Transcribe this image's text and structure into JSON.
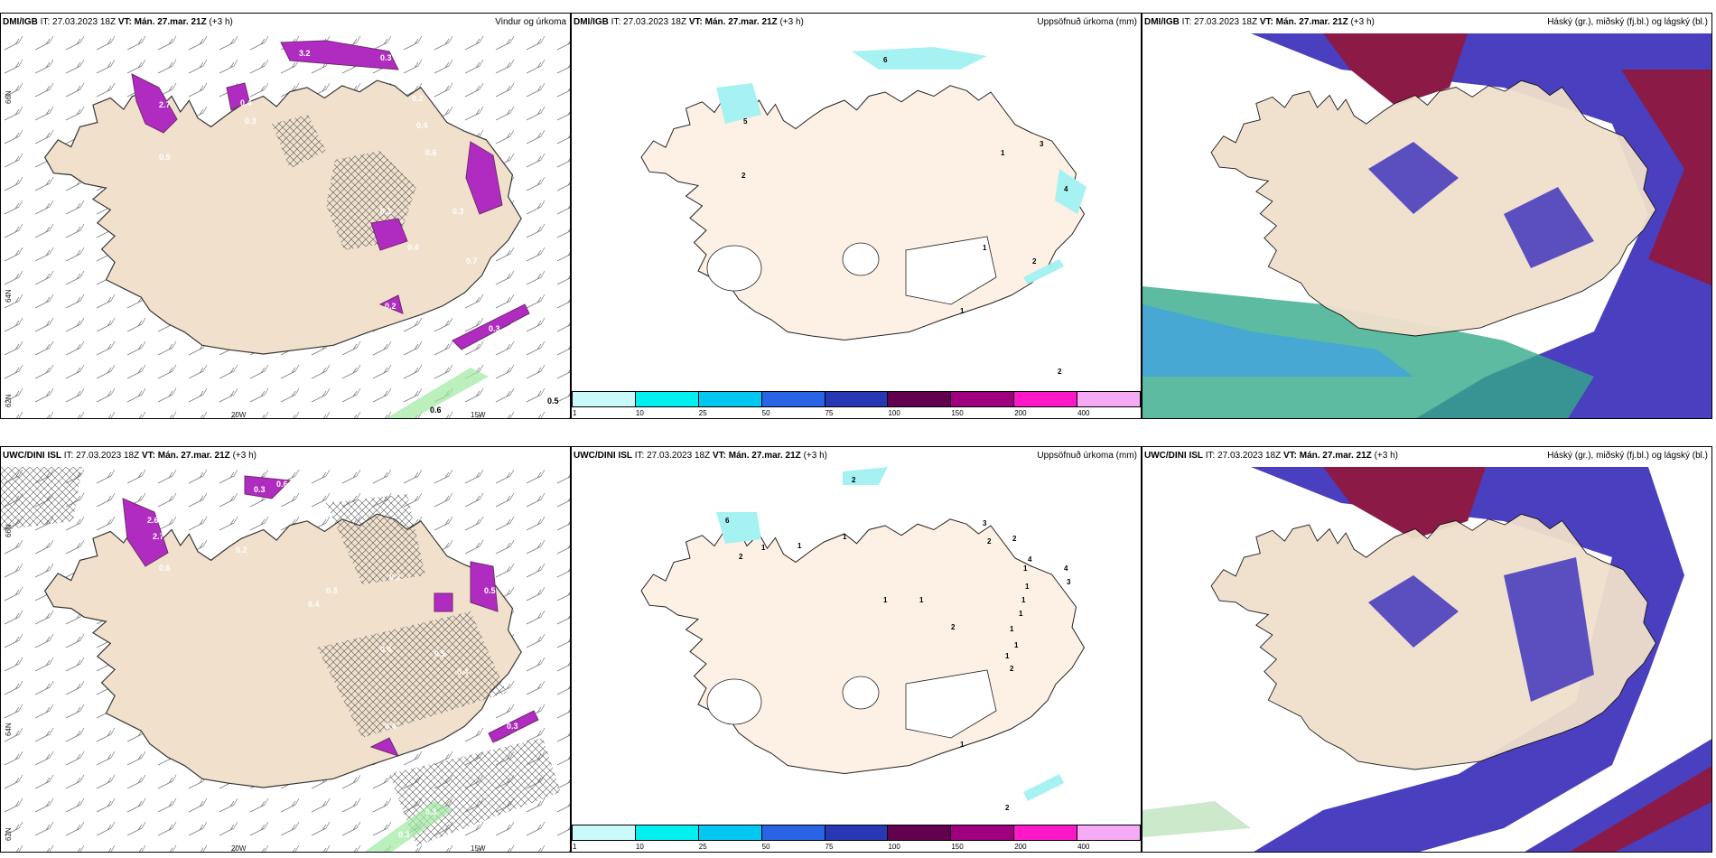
{
  "colors": {
    "land": "#f0e0cc",
    "land_dark": "#e9d8c4",
    "land_light": "#fdf0e4",
    "precip_purple": "#b02cc0",
    "precip_dark": "#6e2a70",
    "accum_cyan": "#a6f1f1",
    "cloud_high": "#8c1a46",
    "cloud_mid": "#4a3fbf",
    "cloud_low": "#3d9fe8",
    "cloud_green": "#33aa88"
  },
  "axis_labels": {
    "lat_66n": "66N",
    "lat_64n": "64N",
    "lat_62n": "62N",
    "lon_20w": "20W",
    "lon_15w": "15W"
  },
  "colorbar": {
    "colors": [
      "#c8fafa",
      "#00f0f0",
      "#00c8f0",
      "#2a64e6",
      "#2838b4",
      "#640050",
      "#a00080",
      "#ff18c8",
      "#f5aaf5"
    ],
    "ticks": [
      "1",
      "10",
      "25",
      "50",
      "75",
      "100",
      "150",
      "200",
      "400"
    ]
  },
  "rows": [
    {
      "panels": [
        {
          "source": "DMI/IGB",
          "it_text": "IT: 27.03.2023 18Z",
          "vt_label": "VT:",
          "vt_value": "Mán. 27.mar. 21Z",
          "lead": "(+3 h)",
          "title": "Vindur og úrkoma",
          "labels": [
            "3.2",
            "0.3",
            "2.7",
            "0.4",
            "0.2",
            "0.3",
            "0.5",
            "0.4",
            "0.6",
            "0.3",
            "0.4",
            "0.1",
            "0.7",
            "0.2",
            "0.1",
            "0.3",
            "0.6",
            "0.5"
          ]
        },
        {
          "source": "DMI/IGB",
          "it_text": "IT: 27.03.2023 18Z",
          "vt_label": "VT:",
          "vt_value": "Mán. 27.mar. 21Z",
          "lead": "(+3 h)",
          "title": "Uppsöfnuð úrkoma (mm)",
          "labels": [
            "6",
            "5",
            "2",
            "1",
            "3",
            "4",
            "1",
            "2",
            "1",
            "2"
          ]
        },
        {
          "source": "DMI/IGB",
          "it_text": "IT: 27.03.2023 18Z",
          "vt_label": "VT:",
          "vt_value": "Mán. 27.mar. 21Z",
          "lead": "(+3 h)",
          "title": "Háský (gr.), miðský (fj.bl.) og lágský (bl.)",
          "labels": []
        }
      ]
    },
    {
      "panels": [
        {
          "source": "UWC/DINI ISL",
          "it_text": "IT: 27.03.2023 18Z",
          "vt_label": "VT:",
          "vt_value": "Mán. 27.mar. 21Z",
          "lead": "(+3 h)",
          "title": "",
          "labels": [
            "0.3",
            "0.6",
            "2.6",
            "2.7",
            "0.6",
            "0.2",
            "0.4",
            "0.3",
            "0.2",
            "0.6",
            "0.5",
            "0.4",
            "0.5",
            "0.4",
            "0.3",
            "0.3",
            "0.3"
          ]
        },
        {
          "source": "UWC/DINI ISL",
          "it_text": "IT: 27.03.2023 18Z",
          "vt_label": "VT:",
          "vt_value": "Mán. 27.mar. 21Z",
          "lead": "(+3 h)",
          "title": "Uppsöfnuð úrkoma (mm)",
          "labels": [
            "2",
            "6",
            "2",
            "1",
            "1",
            "1",
            "1",
            "1",
            "2",
            "3",
            "2",
            "2",
            "4",
            "4",
            "3",
            "1",
            "1",
            "1",
            "1",
            "1",
            "1",
            "1",
            "2",
            "1",
            "2"
          ]
        },
        {
          "source": "UWC/DINI ISL",
          "it_text": "IT: 27.03.2023 18Z",
          "vt_label": "VT:",
          "vt_value": "Mán. 27.mar. 21Z",
          "lead": "(+3 h)",
          "title": "Háský (gr.), miðský (fj.bl.) og lágský (bl.)",
          "labels": []
        }
      ]
    }
  ]
}
